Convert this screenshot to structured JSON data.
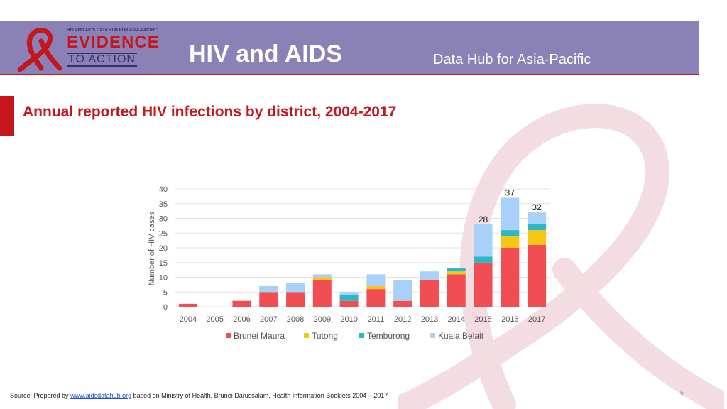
{
  "header": {
    "logo_top": "HIV AND AIDS DATA HUB FOR ASIA-PACIFIC",
    "logo_main": "EVIDENCE",
    "logo_sub": "TO ACTION",
    "title": "HIV and AIDS",
    "subtitle": "Data Hub for Asia-Pacific"
  },
  "colors": {
    "header_bg": "#8a82b6",
    "accent_red": "#c4161c"
  },
  "footer": {
    "source_prefix": "Source: Prepared by ",
    "source_link": "www.aidsdatahub.org",
    "source_suffix": " based on Ministry of Health, Brunei Darussalam, Health Information Booklets 2004 – 2017",
    "page_number": "6"
  },
  "chart_data": {
    "type": "bar",
    "stacked": true,
    "title": "Annual reported HIV infections by district, 2004-2017",
    "xlabel": "",
    "ylabel": "Number of HIV cases",
    "ylim": [
      0,
      40
    ],
    "yticks": [
      0,
      5,
      10,
      15,
      20,
      25,
      30,
      35,
      40
    ],
    "grid": true,
    "legend": "bottom",
    "categories": [
      "2004",
      "2005",
      "2006",
      "2007",
      "2008",
      "2009",
      "2010",
      "2011",
      "2012",
      "2013",
      "2014",
      "2015",
      "2016",
      "2017"
    ],
    "series": [
      {
        "name": "Brunei Maura",
        "color": "#f04e52",
        "values": [
          1,
          0,
          2,
          5,
          5,
          9,
          2,
          6,
          2,
          9,
          11,
          15,
          20,
          21
        ]
      },
      {
        "name": "Tutong",
        "color": "#f5c518",
        "values": [
          0,
          0,
          0,
          0,
          0,
          1,
          0,
          1,
          0,
          0,
          1,
          0,
          4,
          5
        ]
      },
      {
        "name": "Temburong",
        "color": "#2ab7c6",
        "values": [
          0,
          0,
          0,
          0,
          0,
          0,
          2,
          0,
          0,
          0,
          1,
          2,
          2,
          2
        ]
      },
      {
        "name": "Kuala Belait",
        "color": "#a9d1f7",
        "values": [
          0,
          0,
          0,
          2,
          3,
          1,
          1,
          4,
          7,
          3,
          0,
          11,
          11,
          4
        ]
      }
    ],
    "data_labels": [
      {
        "category": "2015",
        "text": "28"
      },
      {
        "category": "2016",
        "text": "37"
      },
      {
        "category": "2017",
        "text": "32"
      }
    ]
  }
}
